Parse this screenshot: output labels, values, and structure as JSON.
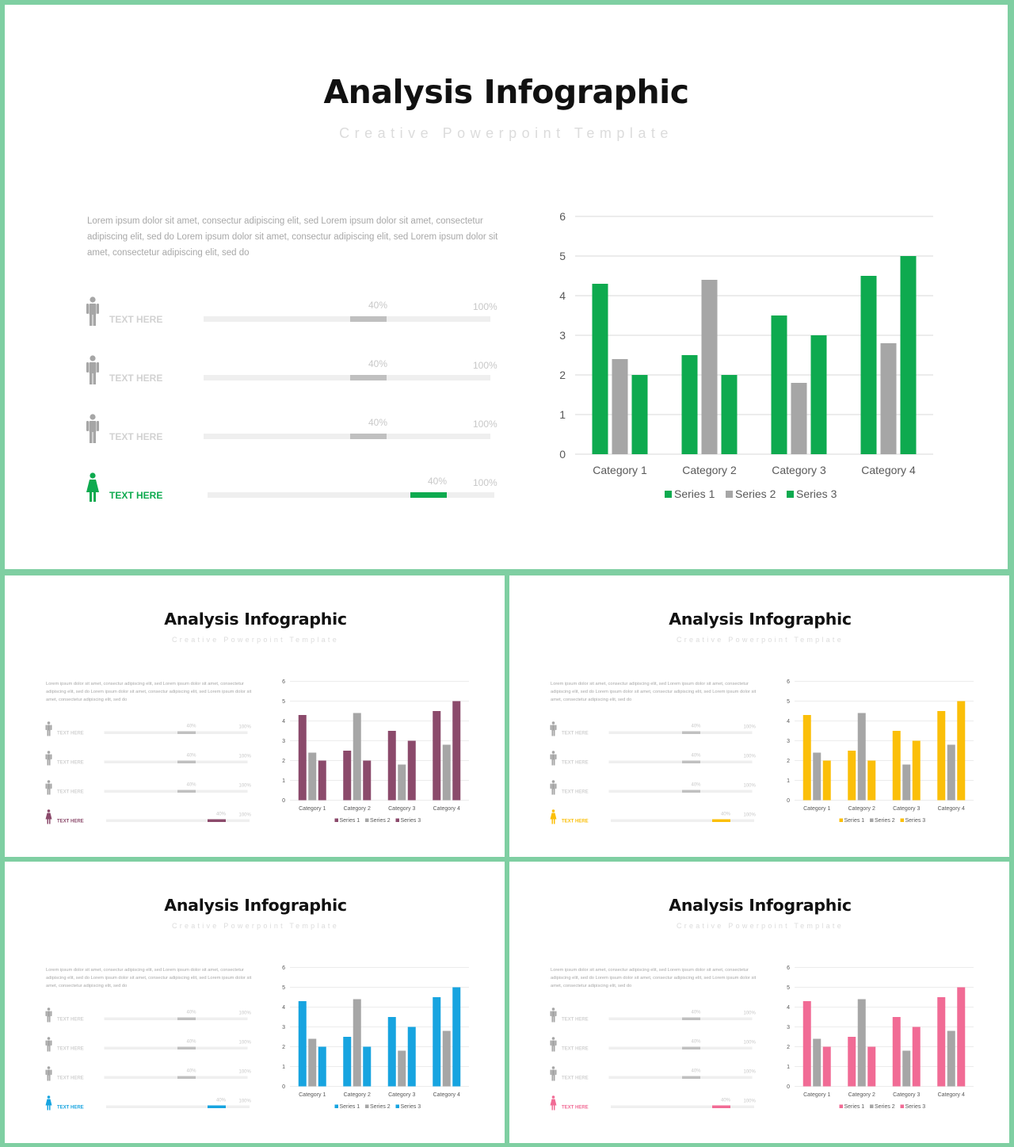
{
  "slide": {
    "title": "Analysis Infographic",
    "subtitle": "Creative Powerpoint Template",
    "body_text": "Lorem ipsum dolor sit amet, consectur adipiscing elit, sed Lorem ipsum dolor sit amet, consectetur adipiscing elit, sed do Lorem ipsum dolor sit amet, consectur adipiscing elit, sed Lorem ipsum dolor sit amet, consectetur adipiscing elit, sed do",
    "rows": [
      {
        "label": "TEXT HERE",
        "percent_label": "40%",
        "max_label": "100%",
        "icon": "male-person-icon",
        "highlight": false
      },
      {
        "label": "TEXT HERE",
        "percent_label": "40%",
        "max_label": "100%",
        "icon": "male-person-icon",
        "highlight": false
      },
      {
        "label": "TEXT HERE",
        "percent_label": "40%",
        "max_label": "100%",
        "icon": "male-person-icon",
        "highlight": false
      },
      {
        "label": "TEXT HERE",
        "percent_label": "40%",
        "max_label": "100%",
        "icon": "female-person-icon",
        "highlight": true
      }
    ]
  },
  "variants": [
    {
      "name": "green",
      "accent": "#0eaa4f"
    },
    {
      "name": "plum",
      "accent": "#8b4a6b"
    },
    {
      "name": "yellow",
      "accent": "#fbbf09"
    },
    {
      "name": "blue",
      "accent": "#17a4e0"
    },
    {
      "name": "pink",
      "accent": "#f16b95"
    }
  ],
  "colors": {
    "frame": "#7fcfa2",
    "neutral_bar": "#a6a6a6",
    "muted_text": "#c8c8c8"
  },
  "chart_data": {
    "type": "bar",
    "categories": [
      "Category 1",
      "Category 2",
      "Category 3",
      "Category 4"
    ],
    "series": [
      {
        "name": "Series 1",
        "values": [
          4.3,
          2.5,
          3.5,
          4.5
        ],
        "color": "accent"
      },
      {
        "name": "Series 2",
        "values": [
          2.4,
          4.4,
          1.8,
          2.8
        ],
        "color": "#a6a6a6"
      },
      {
        "name": "Series 3",
        "values": [
          2.0,
          2.0,
          3.0,
          5.0
        ],
        "color": "accent"
      }
    ],
    "ylim": [
      0,
      6
    ],
    "yticks": [
      "0",
      "1",
      "2",
      "3",
      "4",
      "5",
      "6"
    ],
    "grid": true,
    "legend": "bottom"
  }
}
